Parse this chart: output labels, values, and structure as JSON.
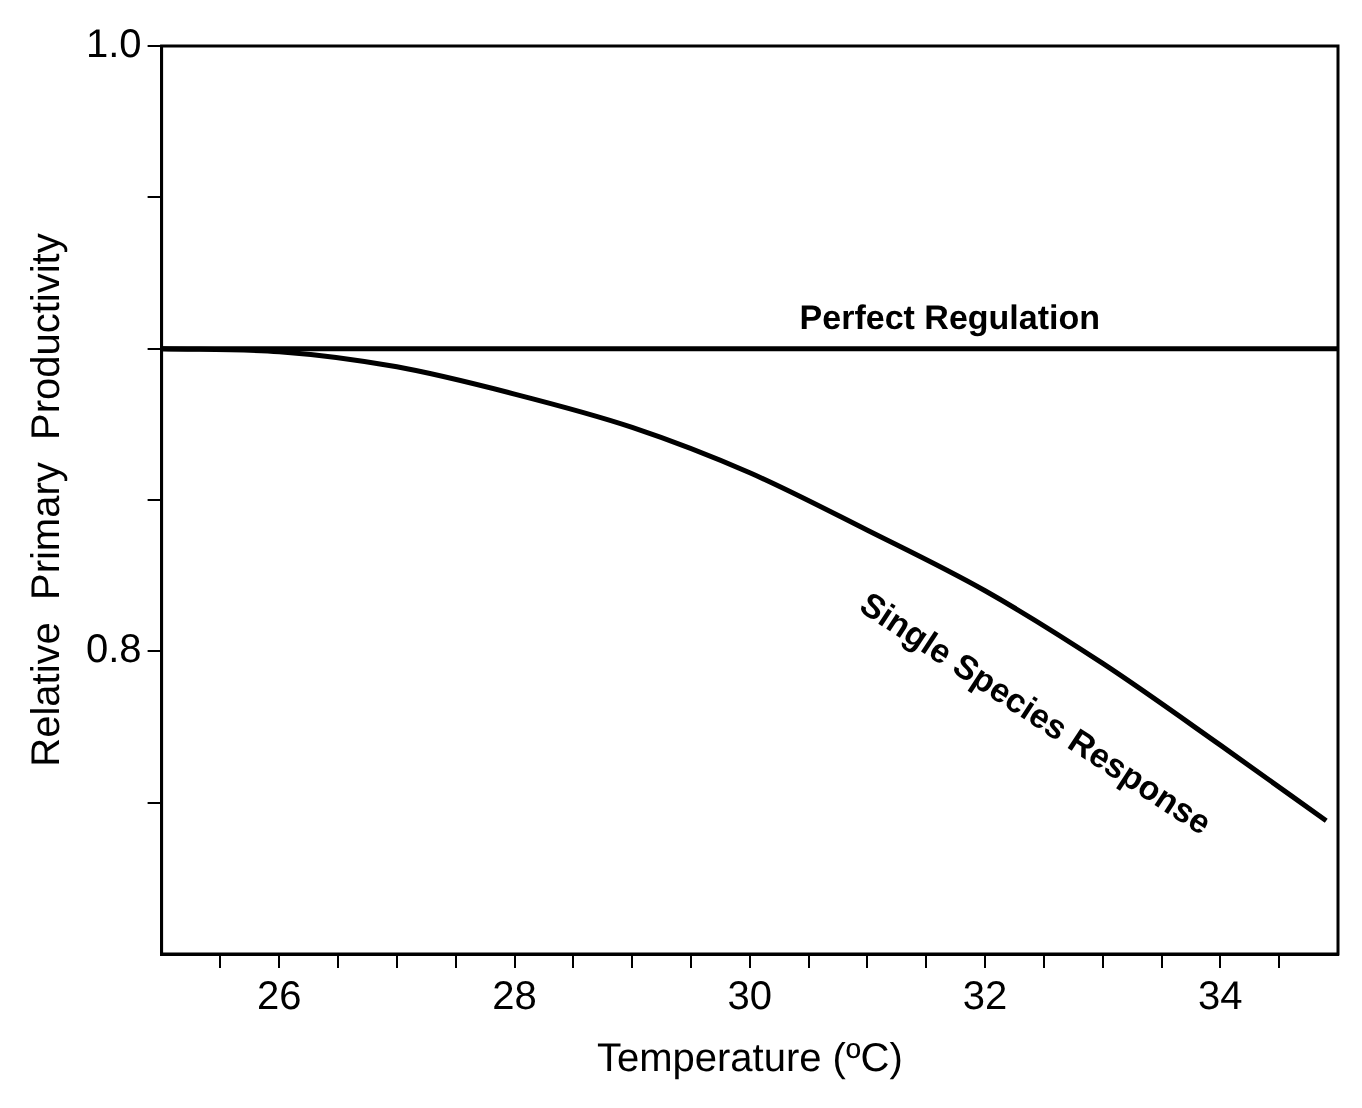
{
  "chart_data": {
    "type": "line",
    "xlabel": "Temperature (ºC)",
    "ylabel": "Relative  Primary  Productivity",
    "xlim": [
      25,
      35
    ],
    "ylim": [
      0.7,
      1.0
    ],
    "xticks": [
      {
        "value": 25.5,
        "label": null
      },
      26,
      {
        "value": 26.5,
        "label": null
      },
      {
        "value": 27,
        "label": null
      },
      {
        "value": 27.5,
        "label": null
      },
      28,
      {
        "value": 28.5,
        "label": null
      },
      {
        "value": 29,
        "label": null
      },
      {
        "value": 29.5,
        "label": null
      },
      30,
      {
        "value": 30.5,
        "label": null
      },
      {
        "value": 31,
        "label": null
      },
      {
        "value": 31.5,
        "label": null
      },
      32,
      {
        "value": 32.5,
        "label": null
      },
      {
        "value": 33,
        "label": null
      },
      {
        "value": 33.5,
        "label": null
      },
      34,
      {
        "value": 34.5,
        "label": null
      }
    ],
    "yticks": [
      {
        "value": 0.75,
        "label": null
      },
      0.8,
      {
        "value": 0.85,
        "label": null
      },
      {
        "value": 0.9,
        "label": null
      },
      {
        "value": 0.95,
        "label": null
      },
      {
        "value": 1.0,
        "label": "1.0"
      }
    ],
    "grid": false,
    "legend": false,
    "marker": "none",
    "line_style": "solid",
    "series": [
      {
        "name": "Perfect Regulation",
        "color": "#000000",
        "x": [
          25,
          35
        ],
        "values": [
          0.9,
          0.9
        ]
      },
      {
        "name": "Single Species Response",
        "color": "#000000",
        "x": [
          25,
          26,
          27,
          28,
          29,
          30,
          31,
          32,
          33,
          34,
          34.9
        ],
        "values": [
          0.9,
          0.899,
          0.894,
          0.885,
          0.874,
          0.859,
          0.84,
          0.82,
          0.796,
          0.769,
          0.744
        ]
      }
    ]
  }
}
